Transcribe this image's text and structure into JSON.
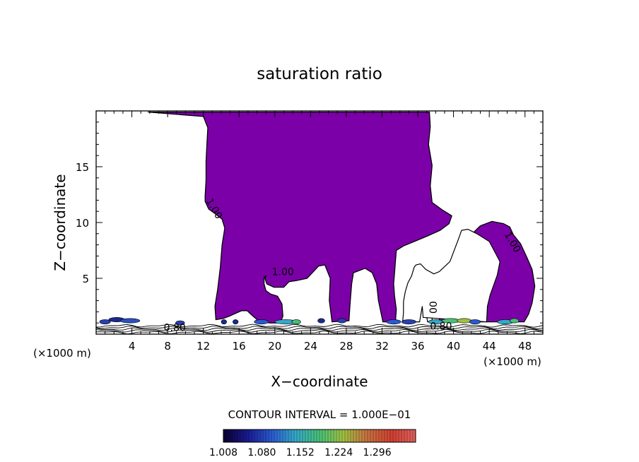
{
  "chart_data": {
    "type": "contour",
    "title": "saturation ratio",
    "xlabel": "X−coordinate",
    "ylabel": "Z−coordinate",
    "x_unit_left": "(×1000 m)",
    "x_unit_right": "(×1000 m)",
    "xlim": [
      0,
      50
    ],
    "ylim": [
      0,
      20
    ],
    "x_ticks": [
      4,
      8,
      12,
      16,
      20,
      24,
      28,
      32,
      36,
      40,
      44,
      48
    ],
    "y_ticks": [
      5,
      10,
      15
    ],
    "contour_interval_text": "CONTOUR INTERVAL = 1.000E−01",
    "contour_labels": [
      {
        "text": "1.00",
        "x": 12.9,
        "z": 11.1,
        "angle": 60
      },
      {
        "text": "1.00",
        "x": 20.9,
        "z": 5.3,
        "angle": 0
      },
      {
        "text": "1.00",
        "x": 46.3,
        "z": 8.1,
        "angle": 60
      },
      {
        "text": "0.80",
        "x": 8.8,
        "z": 0.3,
        "angle": 0
      },
      {
        "text": "0.80",
        "x": 38.6,
        "z": 0.4,
        "angle": 0
      },
      {
        "text": "00",
        "x": 37.3,
        "z": 2.4,
        "angle": 90
      }
    ],
    "fill_color": "#7b00a8",
    "colorbar": {
      "ticks": [
        1.008,
        1.08,
        1.152,
        1.224,
        1.296
      ],
      "tick_labels": [
        "1.008",
        "1.080",
        "1.152",
        "1.224",
        "1.296"
      ],
      "min": 1.008,
      "max": 1.368,
      "colors": [
        "#0a0030",
        "#1a1a90",
        "#2a5ad0",
        "#35a8c8",
        "#48c078",
        "#a0c040",
        "#c87040",
        "#d04030",
        "#e06060"
      ]
    },
    "region_boundary": [
      [
        5.8,
        19.9
      ],
      [
        12.0,
        19.9
      ],
      [
        18.0,
        19.9
      ],
      [
        24.0,
        19.9
      ],
      [
        29.0,
        19.9
      ],
      [
        33.0,
        19.9
      ],
      [
        37.3,
        19.9
      ],
      [
        37.4,
        18.6
      ],
      [
        37.2,
        17.0
      ],
      [
        37.6,
        15.1
      ],
      [
        37.4,
        13.3
      ],
      [
        37.6,
        11.8
      ],
      [
        38.8,
        11.1
      ],
      [
        39.8,
        10.6
      ],
      [
        39.5,
        9.9
      ],
      [
        38.5,
        9.3
      ],
      [
        37.1,
        8.8
      ],
      [
        35.6,
        8.3
      ],
      [
        34.4,
        7.9
      ],
      [
        33.6,
        7.5
      ],
      [
        33.5,
        6.5
      ],
      [
        33.4,
        5.5
      ],
      [
        33.3,
        4.5
      ],
      [
        33.4,
        3.4
      ],
      [
        33.6,
        2.2
      ],
      [
        33.5,
        1.1
      ],
      [
        32.1,
        1.1
      ],
      [
        31.6,
        3.0
      ],
      [
        31.4,
        4.5
      ],
      [
        30.9,
        5.5
      ],
      [
        30.1,
        5.9
      ],
      [
        28.8,
        5.5
      ],
      [
        28.6,
        4.5
      ],
      [
        28.5,
        3.5
      ],
      [
        28.4,
        2.5
      ],
      [
        28.3,
        1.2
      ],
      [
        26.4,
        1.1
      ],
      [
        26.1,
        3.0
      ],
      [
        26.2,
        5.0
      ],
      [
        25.6,
        6.2
      ],
      [
        24.9,
        6.1
      ],
      [
        24.2,
        5.5
      ],
      [
        23.6,
        5.0
      ],
      [
        23.0,
        4.9
      ],
      [
        22.4,
        4.8
      ],
      [
        21.6,
        4.7
      ],
      [
        21.0,
        4.2
      ],
      [
        19.9,
        4.2
      ],
      [
        19.1,
        4.5
      ],
      [
        18.9,
        5.0
      ],
      [
        19.0,
        5.2
      ],
      [
        18.8,
        5.1
      ],
      [
        18.8,
        4.5
      ],
      [
        19.0,
        3.9
      ],
      [
        19.5,
        3.6
      ],
      [
        20.3,
        3.4
      ],
      [
        20.8,
        2.7
      ],
      [
        20.9,
        1.6
      ],
      [
        20.6,
        1.0
      ],
      [
        19.5,
        1.0
      ],
      [
        18.3,
        1.1
      ],
      [
        17.3,
        1.8
      ],
      [
        16.9,
        2.1
      ],
      [
        16.3,
        2.1
      ],
      [
        15.7,
        1.9
      ],
      [
        14.9,
        1.6
      ],
      [
        14.2,
        1.4
      ],
      [
        13.4,
        1.3
      ],
      [
        13.3,
        2.5
      ],
      [
        13.6,
        4.0
      ],
      [
        13.9,
        6.0
      ],
      [
        14.1,
        8.0
      ],
      [
        14.4,
        9.5
      ],
      [
        14.1,
        10.3
      ],
      [
        13.3,
        10.8
      ],
      [
        12.6,
        11.2
      ],
      [
        12.2,
        11.9
      ],
      [
        12.2,
        12.4
      ],
      [
        12.3,
        13.8
      ],
      [
        12.3,
        15.5
      ],
      [
        12.4,
        17.0
      ],
      [
        12.5,
        18.5
      ],
      [
        12.0,
        19.5
      ],
      [
        5.8,
        19.9
      ]
    ],
    "holes": [
      [
        [
          37.1,
          1.1
        ],
        [
          36.8,
          2.5
        ],
        [
          36.5,
          3.5
        ],
        [
          36.8,
          4.0
        ],
        [
          37.3,
          3.8
        ],
        [
          37.6,
          2.5
        ],
        [
          37.6,
          1.2
        ]
      ],
      [
        [
          40.7,
          1.1
        ],
        [
          40.8,
          2.5
        ],
        [
          41.1,
          3.8
        ],
        [
          41.9,
          4.1
        ],
        [
          42.3,
          3.5
        ],
        [
          42.3,
          2.5
        ],
        [
          42.5,
          1.5
        ],
        [
          42.7,
          1.1
        ]
      ],
      [
        [
          43.7,
          1.1
        ],
        [
          43.8,
          2.5
        ],
        [
          44.1,
          3.5
        ],
        [
          44.9,
          5.3
        ],
        [
          45.2,
          6.5
        ],
        [
          44.0,
          8.3
        ],
        [
          42.6,
          9.0
        ],
        [
          41.6,
          9.4
        ],
        [
          40.9,
          9.3
        ],
        [
          40.5,
          8.4
        ],
        [
          39.6,
          6.5
        ],
        [
          38.4,
          5.6
        ],
        [
          37.8,
          5.4
        ],
        [
          36.9,
          5.8
        ],
        [
          36.3,
          6.3
        ],
        [
          35.8,
          6.2
        ],
        [
          35.6,
          6.0
        ],
        [
          35.3,
          5.2
        ],
        [
          34.9,
          4.6
        ],
        [
          34.6,
          3.8
        ],
        [
          34.4,
          2.9
        ],
        [
          34.4,
          1.9
        ],
        [
          34.3,
          1.1
        ],
        [
          36.2,
          1.1
        ],
        [
          36.5,
          2.5
        ],
        [
          36.6,
          1.5
        ]
      ]
    ],
    "outer_right": [
      [
        37.4,
        1.1
      ],
      [
        38.4,
        1.1
      ],
      [
        38.5,
        2.5
      ],
      [
        38.9,
        3.6
      ],
      [
        39.8,
        4.6
      ],
      [
        40.1,
        5.5
      ],
      [
        40.6,
        6.5
      ],
      [
        41.3,
        8.0
      ],
      [
        42.1,
        9.0
      ],
      [
        43.0,
        9.7
      ],
      [
        44.3,
        10.1
      ],
      [
        45.6,
        9.9
      ],
      [
        46.3,
        9.6
      ],
      [
        46.7,
        8.9
      ],
      [
        47.5,
        8.1
      ],
      [
        48.2,
        6.9
      ],
      [
        48.8,
        5.8
      ],
      [
        49.1,
        4.3
      ],
      [
        48.8,
        2.8
      ],
      [
        48.4,
        1.8
      ],
      [
        47.9,
        1.1
      ]
    ]
  }
}
